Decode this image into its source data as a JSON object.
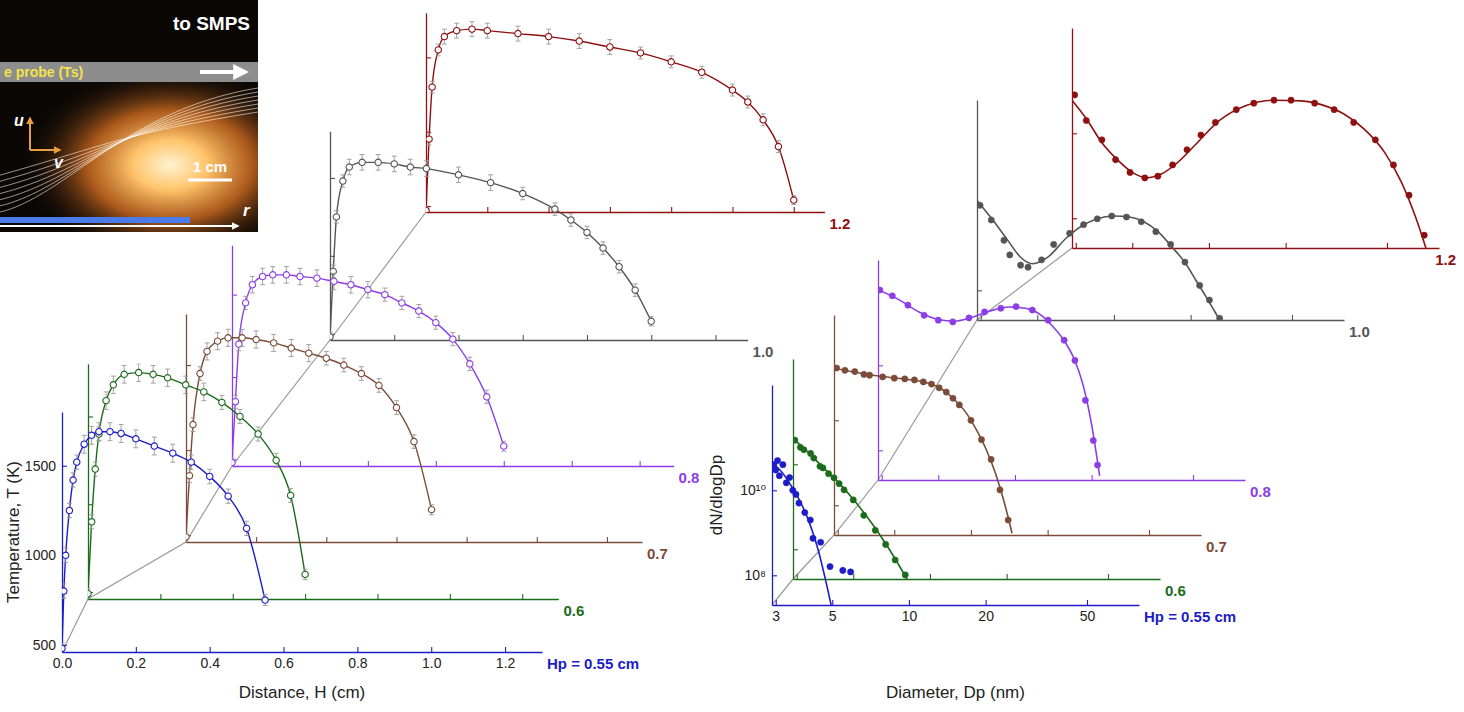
{
  "chart_data": [
    {
      "type": "line",
      "x_label": "Distance, H (cm)",
      "y_label": "Temperature, T (K)",
      "xlim": [
        0,
        1.3
      ],
      "ylim": [
        460,
        1800
      ],
      "xticks": [
        {
          "value": 0,
          "label": "0.0"
        },
        0.2,
        0.4,
        0.6,
        0.8,
        {
          "value": 1,
          "label": "1.0"
        },
        1.2
      ],
      "yticks": [
        500,
        1000,
        1500
      ],
      "marker": "circle",
      "line_style": "solid",
      "series": [
        {
          "name": "Hp = 0.55 cm",
          "color": "#1c1cc8",
          "x": [
            0,
            0.005,
            0.01,
            0.02,
            0.03,
            0.04,
            0.06,
            0.08,
            0.1,
            0.13,
            0.16,
            0.2,
            0.25,
            0.3,
            0.35,
            0.4,
            0.45,
            0.5,
            0.55
          ],
          "values": [
            480,
            800,
            1000,
            1250,
            1420,
            1520,
            1620,
            1670,
            1690,
            1690,
            1680,
            1650,
            1610,
            1570,
            1520,
            1440,
            1330,
            1150,
            750
          ],
          "error": [
            30,
            40,
            40,
            40,
            40,
            40,
            50,
            50,
            50,
            50,
            50,
            50,
            50,
            50,
            40,
            40,
            40,
            40,
            30
          ]
        },
        {
          "name": "0.6",
          "color": "#1b6b1b",
          "x": [
            0,
            0.01,
            0.02,
            0.03,
            0.05,
            0.07,
            0.1,
            0.14,
            0.18,
            0.22,
            0.27,
            0.32,
            0.37,
            0.42,
            0.47,
            0.52,
            0.56,
            0.6
          ],
          "values": [
            490,
            900,
            1200,
            1400,
            1590,
            1680,
            1740,
            1750,
            1740,
            1720,
            1680,
            1640,
            1580,
            1500,
            1400,
            1250,
            1050,
            600
          ],
          "error": [
            30,
            40,
            40,
            40,
            50,
            50,
            50,
            50,
            50,
            50,
            50,
            50,
            40,
            40,
            40,
            40,
            40,
            30
          ]
        },
        {
          "name": "0.7",
          "color": "#7b4b38",
          "x": [
            0,
            0.01,
            0.02,
            0.04,
            0.06,
            0.09,
            0.12,
            0.16,
            0.2,
            0.25,
            0.3,
            0.35,
            0.4,
            0.45,
            0.5,
            0.55,
            0.6,
            0.65,
            0.7
          ],
          "values": [
            490,
            850,
            1150,
            1450,
            1580,
            1640,
            1660,
            1660,
            1650,
            1630,
            1600,
            1570,
            1540,
            1500,
            1450,
            1380,
            1250,
            1050,
            650
          ],
          "error": [
            30,
            40,
            40,
            40,
            50,
            50,
            50,
            50,
            50,
            50,
            50,
            50,
            40,
            40,
            40,
            40,
            40,
            40,
            30
          ]
        },
        {
          "name": "0.8",
          "color": "#8c3ee6",
          "x": [
            0,
            0.01,
            0.02,
            0.04,
            0.06,
            0.09,
            0.12,
            0.16,
            0.2,
            0.25,
            0.3,
            0.35,
            0.4,
            0.45,
            0.5,
            0.55,
            0.6,
            0.65,
            0.7,
            0.75,
            0.8
          ],
          "values": [
            480,
            850,
            1200,
            1450,
            1560,
            1610,
            1620,
            1620,
            1610,
            1600,
            1580,
            1560,
            1530,
            1500,
            1450,
            1400,
            1330,
            1230,
            1080,
            880,
            580
          ],
          "error": [
            30,
            40,
            40,
            40,
            50,
            50,
            50,
            50,
            50,
            50,
            50,
            50,
            50,
            40,
            40,
            40,
            40,
            40,
            40,
            40,
            30
          ]
        },
        {
          "name": "1.0",
          "color": "#555555",
          "x": [
            0,
            0.01,
            0.02,
            0.04,
            0.06,
            0.1,
            0.15,
            0.2,
            0.25,
            0.3,
            0.4,
            0.5,
            0.6,
            0.7,
            0.75,
            0.8,
            0.85,
            0.9,
            0.95,
            1.0
          ],
          "values": [
            480,
            900,
            1250,
            1480,
            1570,
            1600,
            1600,
            1590,
            1570,
            1560,
            1520,
            1470,
            1400,
            1300,
            1230,
            1150,
            1050,
            930,
            780,
            580
          ],
          "error": [
            30,
            40,
            40,
            40,
            50,
            50,
            50,
            50,
            50,
            50,
            50,
            50,
            40,
            40,
            40,
            40,
            40,
            40,
            40,
            30
          ]
        },
        {
          "name": "1.2",
          "color": "#8e1010",
          "x": [
            0,
            0.01,
            0.02,
            0.04,
            0.06,
            0.1,
            0.15,
            0.2,
            0.3,
            0.4,
            0.5,
            0.6,
            0.7,
            0.8,
            0.9,
            1.0,
            1.05,
            1.1,
            1.15,
            1.2
          ],
          "values": [
            470,
            950,
            1300,
            1550,
            1640,
            1680,
            1690,
            1680,
            1660,
            1640,
            1610,
            1570,
            1530,
            1470,
            1400,
            1280,
            1200,
            1080,
            900,
            540
          ],
          "error": [
            30,
            40,
            40,
            40,
            50,
            50,
            50,
            50,
            50,
            50,
            50,
            50,
            40,
            40,
            40,
            40,
            40,
            40,
            40,
            30
          ]
        }
      ]
    },
    {
      "type": "scatter",
      "log": true,
      "x_label": "Diameter, Dp (nm)",
      "y_label": "dN/dlogDp",
      "xlim": [
        2.9,
        80
      ],
      "ylim": [
        20000000.0,
        3000000000000.0
      ],
      "xticks": [
        3,
        5,
        10,
        20,
        50
      ],
      "yticks": [
        {
          "value": 100000000,
          "label": "10⁸"
        },
        {
          "value": 10000000000,
          "label": "10¹⁰"
        }
      ],
      "marker": "circle",
      "line_style": "solid",
      "series": [
        {
          "name": "Hp = 0.55 cm",
          "color": "#1c1cc8",
          "x": [
            2.95,
            3.0,
            3.05,
            3.1,
            3.2,
            3.3,
            3.4,
            3.5,
            3.6,
            3.7,
            3.9,
            4.1,
            4.2,
            4.5,
            4.9,
            5.5,
            5.9
          ],
          "values": [
            40000000000.0,
            30000000000.0,
            50000000000.0,
            22000000000.0,
            40000000000.0,
            15000000000.0,
            20000000000.0,
            10000000000.0,
            8000000000.0,
            5000000000.0,
            3000000000.0,
            2000000000.0,
            740000000.0,
            600000000.0,
            160000000.0,
            130000000.0,
            120000000.0
          ],
          "fit": {
            "x": [
              2.9,
              3.2,
              3.5,
              3.8,
              4.1,
              4.4,
              4.7,
              5.0
            ],
            "values": [
              45000000000.0,
              25000000000.0,
              11000000000.0,
              4500000000.0,
              1500000000.0,
              400000000.0,
              80000000.0,
              15000000.0
            ]
          }
        },
        {
          "name": "0.6",
          "color": "#1b6b1b",
          "x": [
            2.95,
            3.1,
            3.2,
            3.4,
            3.5,
            3.7,
            3.8,
            4.0,
            4.2,
            4.4,
            4.6,
            5.0,
            5.5,
            6.1,
            6.7,
            7.3,
            8.0
          ],
          "values": [
            37000000000.0,
            25000000000.0,
            22000000000.0,
            18000000000.0,
            14000000000.0,
            9000000000.0,
            8200000000.0,
            6000000000.0,
            4800000000.0,
            3500000000.0,
            2500000000.0,
            1450000000.0,
            630000000.0,
            280000000.0,
            130000000.0,
            56000000.0,
            25000000.0
          ],
          "fit": {
            "x": [
              2.9,
              3.3,
              3.8,
              4.4,
              5.0,
              5.7,
              6.5,
              7.3,
              8.2
            ],
            "values": [
              40000000000.0,
              20000000000.0,
              8500000000.0,
              3600000000.0,
              1500000000.0,
              550000000.0,
              180000000.0,
              60000000.0,
              18000000.0
            ]
          }
        },
        {
          "name": "0.7",
          "color": "#7b4b38",
          "x": [
            2.97,
            3.2,
            3.5,
            3.8,
            4.0,
            4.5,
            5.0,
            5.5,
            6.0,
            6.5,
            7.0,
            7.5,
            8.0,
            8.5,
            9.0,
            10,
            11,
            12,
            13,
            14
          ],
          "values": [
            170000000000.0,
            150000000000.0,
            140000000000.0,
            120000000000.0,
            115000000000.0,
            105000000000.0,
            98000000000.0,
            94000000000.0,
            89000000000.0,
            80000000000.0,
            71000000000.0,
            58000000000.0,
            46000000000.0,
            33000000000.0,
            23000000000.0,
            10000000000.0,
            3500000000.0,
            1200000000.0,
            230000000.0,
            45000000.0
          ],
          "fit": {
            "x": [
              2.9,
              3.5,
              4.5,
              5.5,
              6.5,
              7.5,
              8.5,
              9.5,
              10.5,
              11.5,
              12.5,
              13.5,
              14.5
            ],
            "values": [
              170000000000.0,
              135000000000.0,
              107000000000.0,
              93000000000.0,
              80000000000.0,
              59000000000.0,
              33000000000.0,
              16000000000.0,
              6000000000.0,
              2000000000.0,
              550000000.0,
              120000000.0,
              22000000.0
            ]
          }
        },
        {
          "name": "0.8",
          "color": "#8c3ee6",
          "x": [
            2.95,
            3.3,
            3.8,
            4.4,
            5.0,
            5.7,
            6.6,
            7.6,
            8.8,
            10.1,
            11.7,
            13.5,
            15.6,
            17.2,
            18.9,
            20.3,
            21.1
          ],
          "values": [
            590000000000.0,
            430000000000.0,
            260000000000.0,
            150000000000.0,
            115000000000.0,
            105000000000.0,
            130000000000.0,
            180000000000.0,
            220000000000.0,
            240000000000.0,
            200000000000.0,
            115000000000.0,
            39000000000.0,
            13000000000.0,
            1500000000.0,
            170000000.0,
            45000000.0
          ],
          "fit": {
            "x": [
              2.9,
              3.5,
              4.2,
              5.0,
              5.8,
              6.8,
              8.0,
              9.5,
              11,
              12.5,
              14,
              15.5,
              17,
              18.5,
              20,
              21.5
            ],
            "values": [
              600000000000.0,
              350000000000.0,
              180000000000.0,
              120000000000.0,
              110000000000.0,
              135000000000.0,
              190000000000.0,
              235000000000.0,
              220000000000.0,
              160000000000.0,
              85000000000.0,
              40000000000.0,
              15000000000.0,
              3500000000.0,
              400000000.0,
              25000000.0
            ]
          }
        },
        {
          "name": "1.0",
          "color": "#555555",
          "x": [
            2.98,
            3.3,
            3.7,
            3.9,
            4.3,
            4.6,
            5.2,
            5.8,
            6.7,
            7.6,
            8.6,
            9.8,
            11.2,
            12.8,
            14.6,
            16.7,
            19.0,
            21.7,
            23.7,
            26.0
          ],
          "values": [
            10000000000.0,
            4500000000.0,
            1500000000.0,
            680000000.0,
            390000000.0,
            350000000.0,
            520000000.0,
            1200000000.0,
            2200000000.0,
            3500000000.0,
            4800000000.0,
            5600000000.0,
            5300000000.0,
            4100000000.0,
            2400000000.0,
            1200000000.0,
            460000000.0,
            130000000.0,
            59000000.0,
            22000000.0
          ],
          "fit": {
            "x": [
              2.9,
              3.3,
              3.8,
              4.3,
              4.8,
              5.5,
              6.5,
              7.5,
              8.5,
              10,
              11.5,
              13,
              15,
              17,
              19,
              21,
              23,
              25,
              27
            ],
            "values": [
              13000000000.0,
              5000000000.0,
              1600000000.0,
              600000000.0,
              420000000.0,
              600000000.0,
              1700000000.0,
              3300000000.0,
              4700000000.0,
              5600000000.0,
              5300000000.0,
              4200000000.0,
              2300000000.0,
              1000000000.0,
              450000000.0,
              170000000.0,
              70000000.0,
              30000000.0,
              13000000.0
            ]
          }
        },
        {
          "name": "1.2",
          "color": "#8e1010",
          "x": [
            2.97,
            3.3,
            3.8,
            4.3,
            4.9,
            5.6,
            6.3,
            7.2,
            8.2,
            9.3,
            10.6,
            12.8,
            15,
            18,
            21,
            26,
            31,
            37,
            45,
            53,
            61,
            70
          ],
          "values": [
            80000000000.0,
            20000000000.0,
            7000000000.0,
            2400000000.0,
            1200000000.0,
            890000000.0,
            980000000.0,
            1800000000.0,
            4100000000.0,
            9100000000.0,
            18000000000.0,
            36000000000.0,
            51000000000.0,
            60000000000.0,
            60000000000.0,
            51000000000.0,
            36000000000.0,
            18000000000.0,
            7000000000.0,
            1800000000.0,
            350000000.0,
            40000000.0
          ],
          "fit": {
            "x": [
              2.9,
              3.3,
              3.8,
              4.4,
              5.0,
              5.7,
              6.5,
              7.5,
              9,
              11,
              14,
              18,
              23,
              28,
              34,
              41,
              49,
              57,
              65,
              73
            ],
            "values": [
              60000000000.0,
              22000000000.0,
              6000000000.0,
              2300000000.0,
              1200000000.0,
              900000000.0,
              1100000000.0,
              2000000000.0,
              6000000000.0,
              20000000000.0,
              45000000000.0,
              60000000000.0,
              58000000000.0,
              46000000000.0,
              28000000000.0,
              12000000000.0,
              3500000000.0,
              700000000.0,
              100000000.0,
              12000000.0
            ]
          }
        }
      ]
    }
  ],
  "inset": {
    "labels": [
      "to SMPS",
      "e probe (Ts)",
      "u",
      "v",
      "1 cm",
      "r"
    ]
  }
}
